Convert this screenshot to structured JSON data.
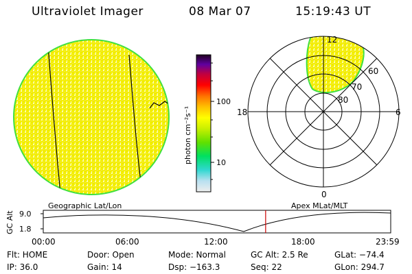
{
  "header": {
    "instrument": "Ultraviolet Imager",
    "date": "08 Mar 07",
    "time": "15:19:43 UT"
  },
  "colorbar": {
    "label": "photon cm⁻²s⁻¹",
    "ticks": [
      "100",
      "10"
    ],
    "colors": [
      "#e8e8e8",
      "#a0d8ff",
      "#00c0c0",
      "#00e070",
      "#40e000",
      "#c8f000",
      "#ffff00",
      "#ffc000",
      "#ff8000",
      "#ff2000",
      "#c00000",
      "#800040",
      "#4000a0",
      "#200020"
    ]
  },
  "polar_plot": {
    "mlt_labels": [
      "12",
      "18",
      "6",
      "0"
    ],
    "lat_labels": [
      "60",
      "70",
      "80"
    ]
  },
  "plot_labels": {
    "left_map": "Geographic Lat/Lon",
    "right_map": "Apex MLat/MLT"
  },
  "altitude_plot": {
    "ylabel": "GC Alt",
    "yticks": [
      "9.0",
      "1.8"
    ],
    "xticks": [
      "00:00",
      "06:00",
      "12:00",
      "18:00",
      "23:59"
    ],
    "current_time_fraction": 0.64
  },
  "status": {
    "filter": "Flt: HOME",
    "ip": "IP: 36.0",
    "door": "Door: Open",
    "gain": "Gain: 14",
    "mode": "Mode: Normal",
    "dsp": "Dsp: −163.3",
    "gc_alt": "GC Alt: 2.5 Re",
    "seq": "Seq: 22",
    "glat": "GLat: −74.4",
    "glon": "GLon: 294.7"
  }
}
